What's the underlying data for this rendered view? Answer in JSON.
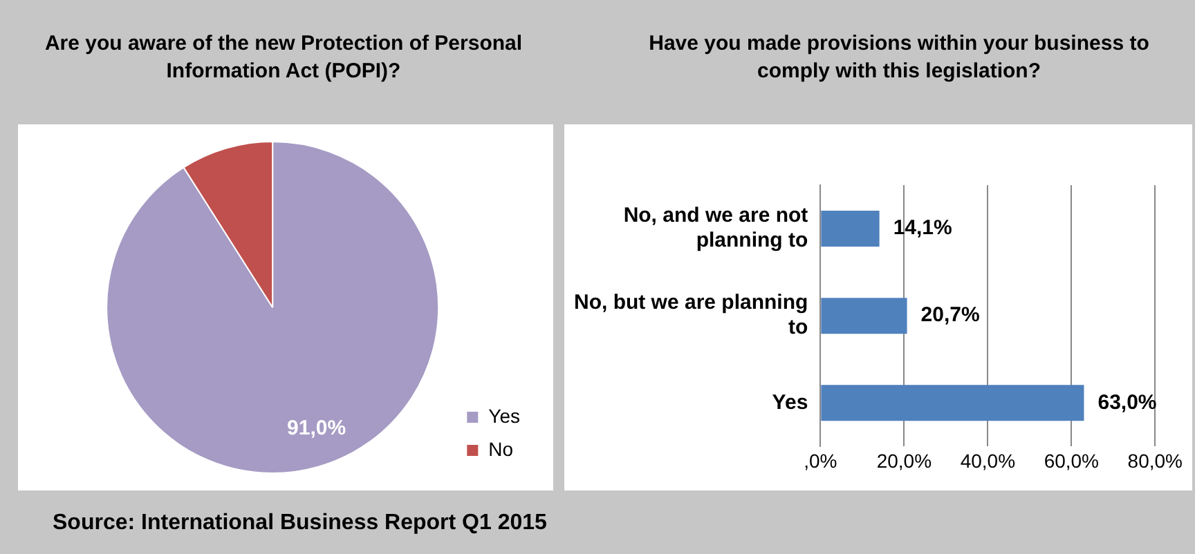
{
  "chart_data": [
    {
      "type": "pie",
      "title": "Are you aware of the new Protection of Personal Information Act (POPI)?",
      "categories": [
        "Yes",
        "No"
      ],
      "values": [
        91,
        9
      ],
      "colors": [
        "#a59bc4",
        "#c0504d"
      ],
      "value_labels": [
        "91,0%",
        null
      ],
      "legend": "bottom right",
      "annotations": [
        "Source: International Business Report Q1 2015"
      ]
    },
    {
      "type": "bar",
      "orientation": "horizontal",
      "title": "Have you made provisions within your business to comply with this legislation?",
      "categories": [
        "No, and we are not planning to",
        "No, but we are planning to",
        "Yes"
      ],
      "values": [
        14.1,
        20.7,
        63.0
      ],
      "color": "#4f81bd",
      "value_labels": [
        "14,1%",
        "20,7%",
        "63,0%"
      ],
      "xlim": [
        0,
        80
      ],
      "xticks": [
        {
          "value": 0,
          "label": ",0%"
        },
        {
          "value": 20,
          "label": "20,0%"
        },
        {
          "value": 40,
          "label": "40,0%"
        },
        {
          "value": 60,
          "label": "60,0%"
        },
        {
          "value": 80,
          "label": "80,0%"
        }
      ],
      "grid": "x"
    }
  ]
}
